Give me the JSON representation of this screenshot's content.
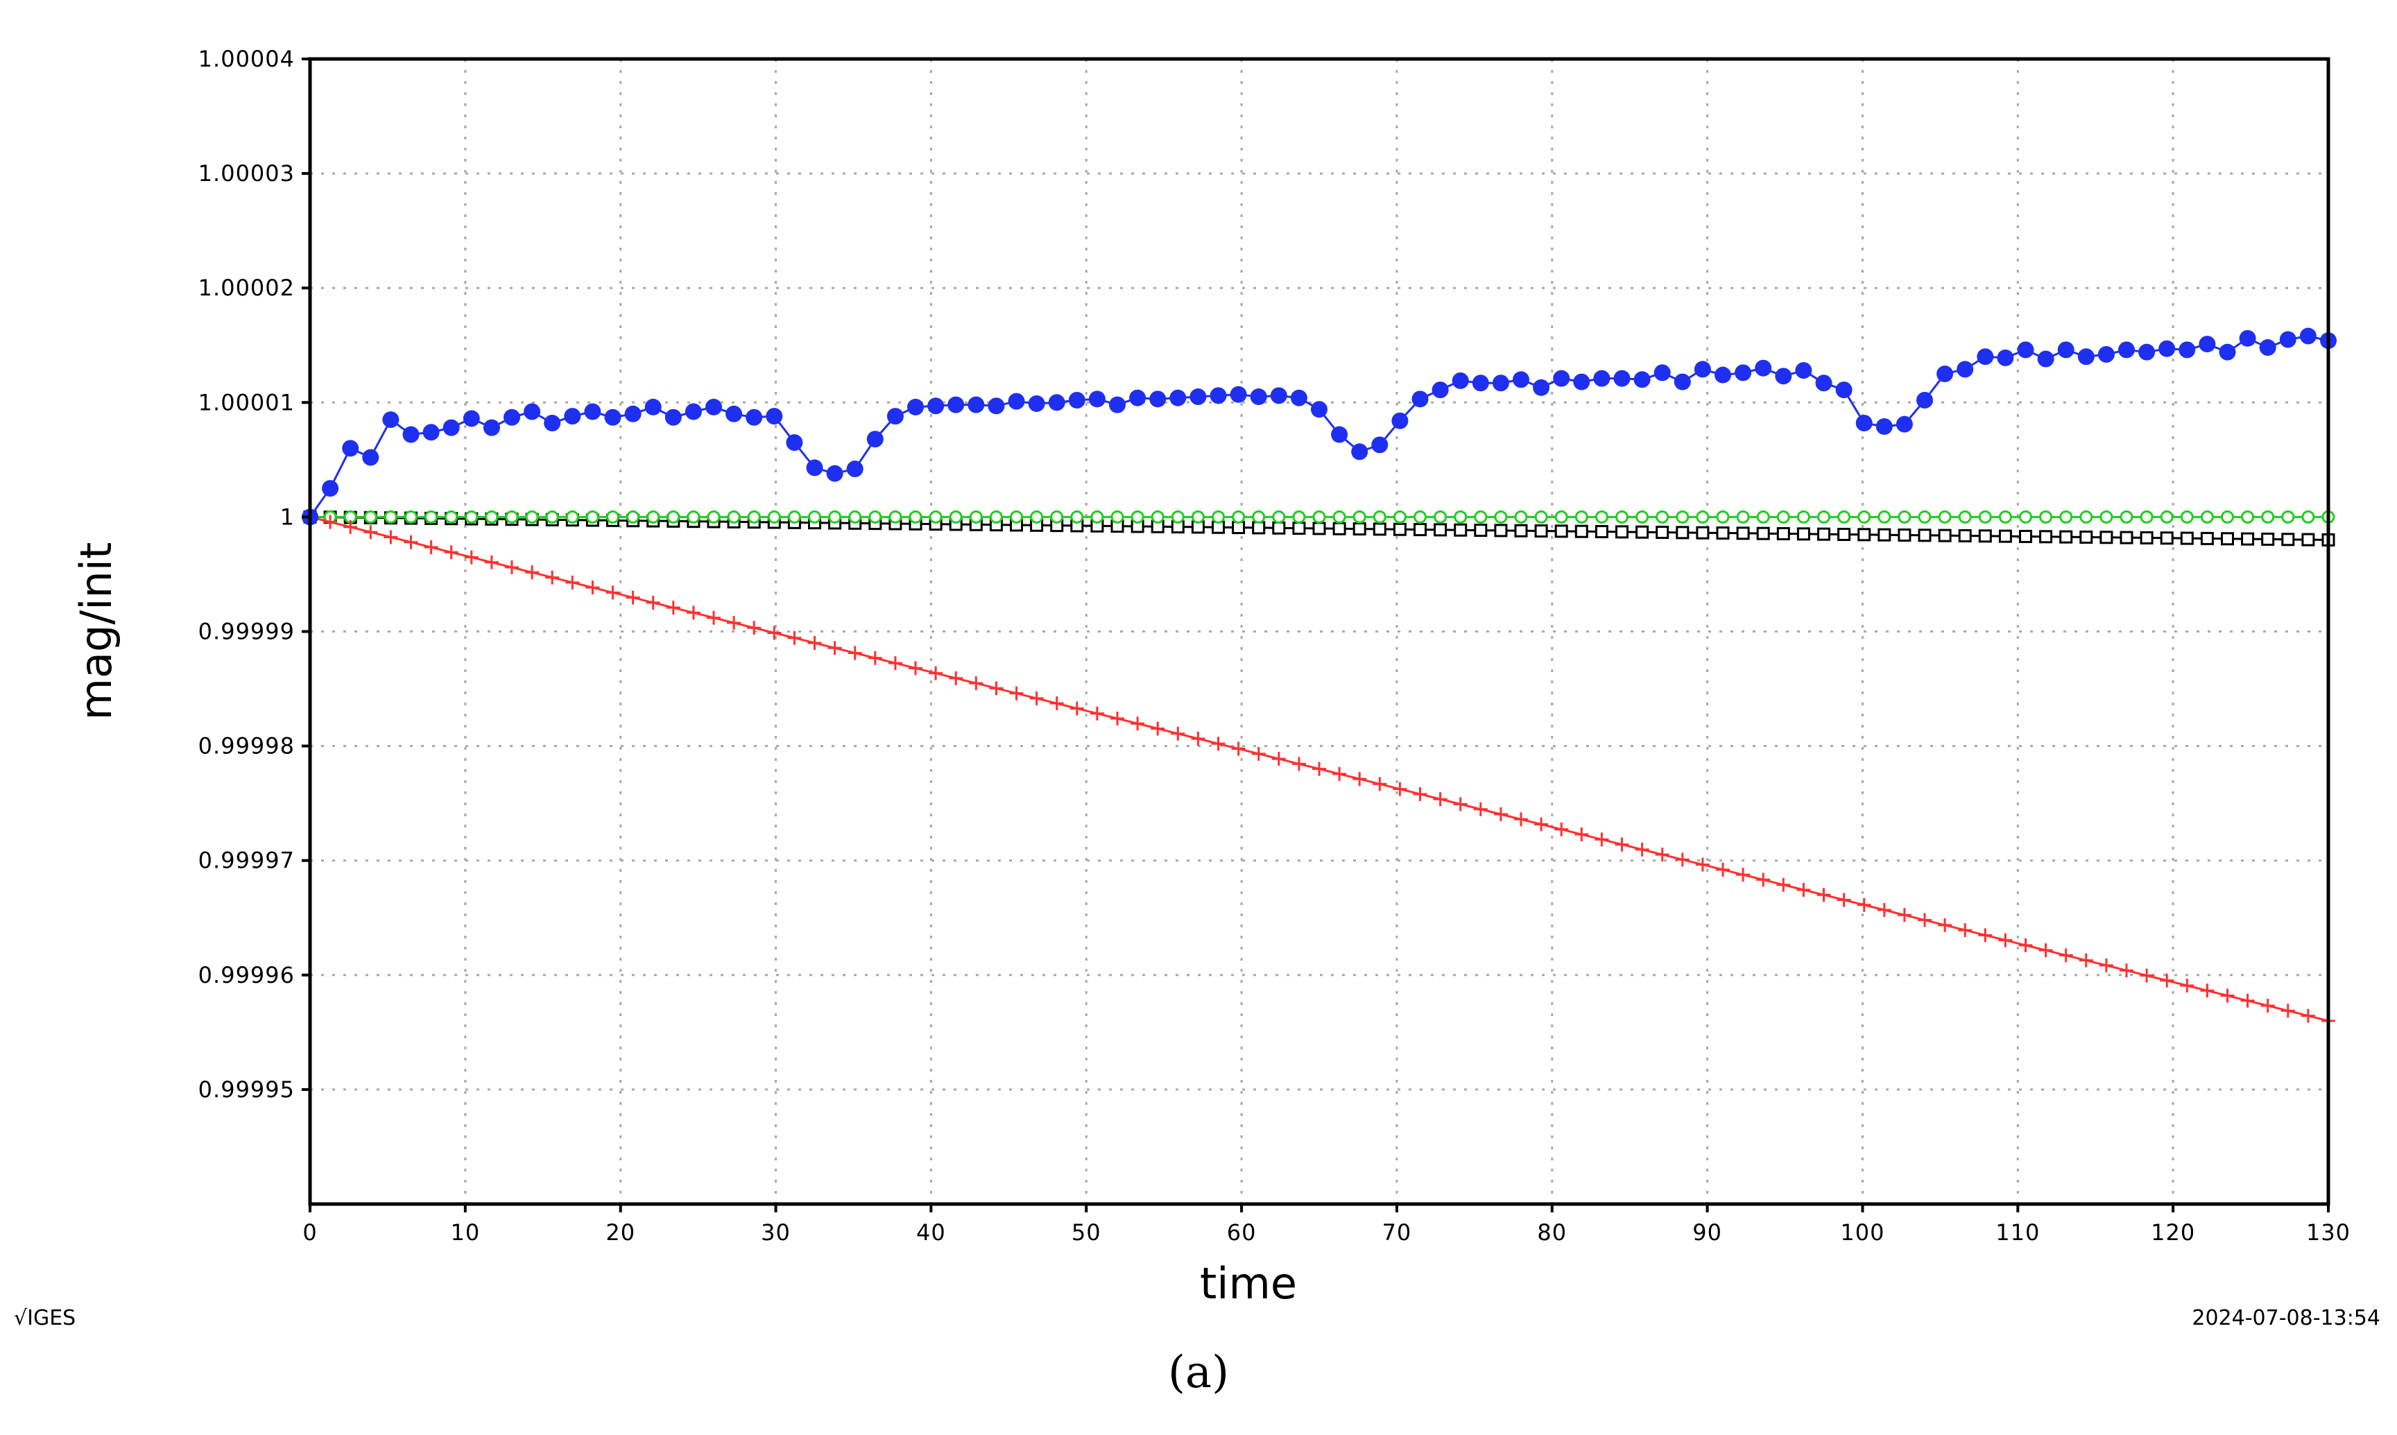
{
  "chart_data": {
    "type": "line",
    "xlabel": "time",
    "ylabel": "mag/init",
    "xlim": [
      0,
      130
    ],
    "ylim": [
      0.99994,
      1.00004
    ],
    "x_ticks": [
      "0",
      "10",
      "20",
      "30",
      "40",
      "50",
      "60",
      "70",
      "80",
      "90",
      "100",
      "110",
      "120",
      "130"
    ],
    "y_ticks": [
      "0.99995",
      "0.99996",
      "0.99997",
      "0.99998",
      "0.99999",
      "1",
      "1.00001",
      "1.00002",
      "1.00003",
      "1.00004"
    ],
    "y_tick_values": [
      0.99995,
      0.99996,
      0.99997,
      0.99998,
      0.99999,
      1,
      1.00001,
      1.00002,
      1.00003,
      1.00004
    ],
    "y_tick_display": [
      "0.99995",
      "0.99996",
      "0.99997",
      "0.99998",
      "0.99999",
      "1",
      "1.00001",
      "1.00002",
      "1.00003",
      "1.00004"
    ],
    "grid": true,
    "series": [
      {
        "color": "#1f2ff0",
        "marker": "filled-circle",
        "x": [
          0,
          1.3,
          2.6,
          3.9,
          5.2,
          6.5,
          7.8,
          9.1,
          10.4,
          11.7,
          13,
          14.3,
          15.6,
          16.9,
          18.2,
          19.5,
          20.8,
          22.1,
          23.4,
          24.7,
          26,
          27.3,
          28.6,
          29.9,
          31.2,
          32.5,
          33.8,
          35.1,
          36.4,
          37.7,
          39,
          40.3,
          41.6,
          42.9,
          44.2,
          45.5,
          46.8,
          48.1,
          49.4,
          50.7,
          52,
          53.3,
          54.6,
          55.9,
          57.2,
          58.5,
          59.8,
          61.1,
          62.4,
          63.7,
          65,
          66.3,
          67.6,
          68.9,
          70.2,
          71.5,
          72.8,
          74.1,
          75.4,
          76.7,
          78,
          79.3,
          80.6,
          81.9,
          83.2,
          84.5,
          85.8,
          87.1,
          88.4,
          89.7,
          91,
          92.3,
          93.6,
          94.9,
          96.2,
          97.5,
          98.8,
          100.1,
          101.4,
          102.7,
          104,
          105.3,
          106.6,
          107.9,
          109.2,
          110.5,
          111.8,
          113.1,
          114.4,
          115.7,
          117,
          118.3,
          119.6,
          120.9,
          122.2,
          123.5,
          124.8,
          126.1,
          127.4,
          128.7,
          130
        ],
        "y": [
          1.0,
          1.0000025,
          1.000006,
          1.0000052,
          1.0000085,
          1.0000072,
          1.0000074,
          1.0000078,
          1.0000086,
          1.0000078,
          1.0000087,
          1.0000092,
          1.0000082,
          1.0000088,
          1.0000092,
          1.0000087,
          1.000009,
          1.0000096,
          1.0000087,
          1.0000092,
          1.0000096,
          1.000009,
          1.0000087,
          1.0000088,
          1.0000065,
          1.0000043,
          1.0000038,
          1.0000042,
          1.0000068,
          1.0000088,
          1.0000096,
          1.0000097,
          1.0000098,
          1.0000098,
          1.0000097,
          1.0000101,
          1.0000099,
          1.00001,
          1.0000102,
          1.0000103,
          1.0000098,
          1.0000104,
          1.0000103,
          1.0000104,
          1.0000105,
          1.0000106,
          1.0000107,
          1.0000105,
          1.0000106,
          1.0000104,
          1.0000094,
          1.0000072,
          1.0000057,
          1.0000063,
          1.0000084,
          1.0000103,
          1.0000111,
          1.0000119,
          1.0000117,
          1.0000117,
          1.000012,
          1.0000113,
          1.0000121,
          1.0000118,
          1.0000121,
          1.0000121,
          1.000012,
          1.0000126,
          1.0000118,
          1.0000129,
          1.0000124,
          1.0000126,
          1.000013,
          1.0000123,
          1.0000128,
          1.0000117,
          1.0000111,
          1.0000082,
          1.0000079,
          1.0000081,
          1.0000102,
          1.0000125,
          1.0000129,
          1.000014,
          1.0000139,
          1.0000146,
          1.0000138,
          1.0000146,
          1.000014,
          1.0000142,
          1.0000146,
          1.0000144,
          1.0000147,
          1.0000146,
          1.0000151,
          1.0000144,
          1.0000156,
          1.0000148,
          1.0000155,
          1.0000158,
          1.0000154
        ]
      },
      {
        "color": "#22cc22",
        "marker": "open-circle",
        "x_start": 0,
        "x_end": 130,
        "points": 101,
        "y_start": 1.0,
        "y_end": 1.0
      },
      {
        "color": "#000000",
        "marker": "open-square",
        "x_start": 0,
        "x_end": 130,
        "points": 101,
        "y_start": 1.0,
        "y_end": 0.999998
      },
      {
        "color": "#ff3030",
        "marker": "plus",
        "x_start": 0,
        "x_end": 130,
        "points": 101,
        "y_start": 1.0,
        "y_end": 0.999956
      }
    ]
  },
  "footer": {
    "left": "√IGES",
    "right": "2024-07-08-13:54"
  },
  "caption": "(a)"
}
